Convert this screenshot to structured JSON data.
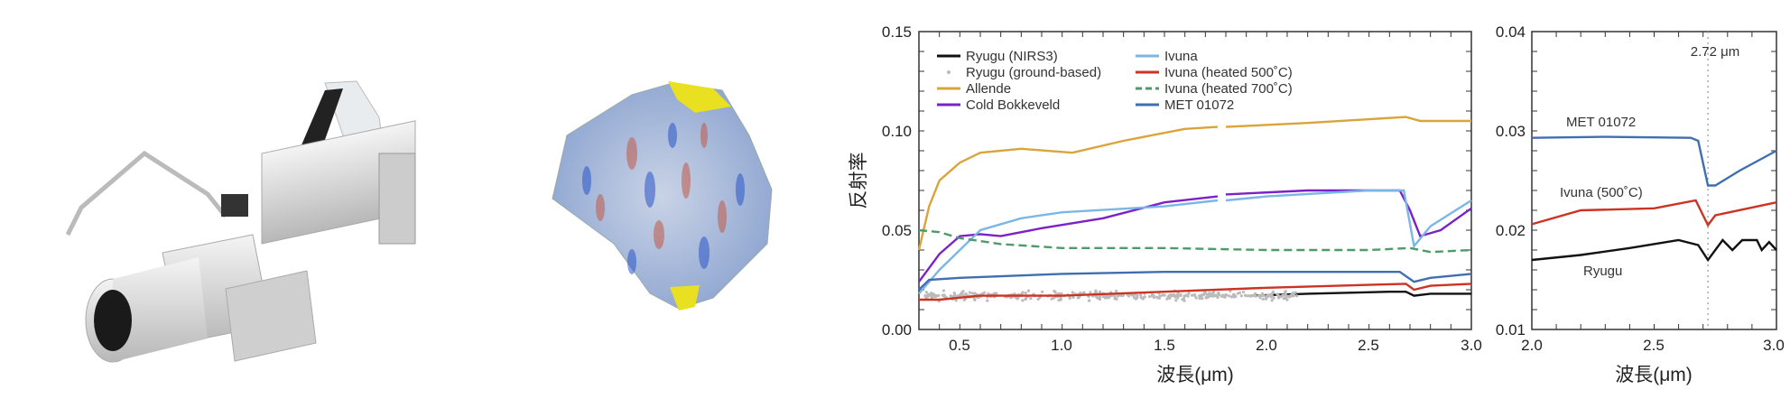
{
  "images": [
    {
      "name": "instrument-camera"
    },
    {
      "name": "asteroid-ryugu-map"
    }
  ],
  "chart_data": [
    {
      "type": "line",
      "title": "",
      "xlabel": "波長(μm)",
      "ylabel": "反射率",
      "xlim": [
        0.3,
        3.0
      ],
      "ylim": [
        0.0,
        0.15
      ],
      "xticks": [
        "0.5",
        "1.0",
        "1.5",
        "2.0",
        "2.5",
        "3.0"
      ],
      "yticks": [
        "0.00",
        "0.05",
        "0.10",
        "0.15"
      ],
      "grid": false,
      "legend": "top-left",
      "series": [
        {
          "name": "Ryugu (NIRS3)",
          "color": "#111111",
          "style": "solid",
          "x": [
            1.92,
            2.2,
            2.6,
            2.68,
            2.72,
            2.8,
            3.0
          ],
          "y": [
            0.017,
            0.018,
            0.019,
            0.019,
            0.017,
            0.018,
            0.018
          ]
        },
        {
          "name": "Ryugu (ground-based)",
          "color": "#bbbbbb",
          "style": "points",
          "x": [
            0.33,
            2.15
          ],
          "y": [
            0.017,
            0.017
          ],
          "spread": 0.003
        },
        {
          "name": "Allende",
          "color": "#d9a43a",
          "style": "solid",
          "x": [
            0.3,
            0.35,
            0.4,
            0.5,
            0.6,
            0.8,
            1.05,
            1.3,
            1.6,
            1.76,
            null,
            1.8,
            2.2,
            2.68,
            2.75,
            3.0
          ],
          "y": [
            0.04,
            0.062,
            0.075,
            0.084,
            0.089,
            0.091,
            0.089,
            0.095,
            0.101,
            0.102,
            null,
            0.102,
            0.104,
            0.107,
            0.105,
            0.105
          ]
        },
        {
          "name": "Cold Bokkeveld",
          "color": "#7a22c8",
          "style": "solid",
          "x": [
            0.3,
            0.4,
            0.5,
            0.6,
            0.7,
            0.9,
            1.2,
            1.5,
            1.76,
            null,
            1.8,
            2.2,
            2.65,
            2.7,
            2.75,
            2.85,
            3.0
          ],
          "y": [
            0.024,
            0.038,
            0.047,
            0.048,
            0.047,
            0.051,
            0.056,
            0.064,
            0.067,
            null,
            0.068,
            0.07,
            0.07,
            0.06,
            0.047,
            0.05,
            0.061
          ]
        },
        {
          "name": "Ivuna",
          "color": "#7ab6e6",
          "style": "solid",
          "x": [
            0.3,
            0.4,
            0.5,
            0.6,
            0.8,
            1.0,
            1.5,
            1.76,
            null,
            1.8,
            2.0,
            2.5,
            2.67,
            2.72,
            2.8,
            3.0
          ],
          "y": [
            0.018,
            0.03,
            0.04,
            0.05,
            0.056,
            0.059,
            0.062,
            0.065,
            null,
            0.065,
            0.067,
            0.07,
            0.07,
            0.042,
            0.052,
            0.065
          ]
        },
        {
          "name": "Ivuna (heated 500˚C)",
          "color": "#cc3322",
          "style": "solid",
          "x": [
            0.3,
            0.4,
            0.6,
            1.0,
            1.5,
            2.0,
            2.68,
            2.72,
            2.8,
            3.0
          ],
          "y": [
            0.015,
            0.015,
            0.017,
            0.017,
            0.019,
            0.021,
            0.023,
            0.02,
            0.022,
            0.023
          ]
        },
        {
          "name": "Ivuna (heated 700˚C)",
          "color": "#4f9a6a",
          "style": "dashed",
          "x": [
            0.3,
            0.4,
            0.5,
            0.7,
            1.0,
            1.5,
            2.0,
            2.5,
            2.7,
            2.8,
            3.0
          ],
          "y": [
            0.05,
            0.049,
            0.046,
            0.043,
            0.041,
            0.041,
            0.04,
            0.04,
            0.041,
            0.039,
            0.04
          ]
        },
        {
          "name": "MET 01072",
          "color": "#3f6fb0",
          "style": "solid",
          "x": [
            0.3,
            0.35,
            0.5,
            1.0,
            1.5,
            2.0,
            2.65,
            2.72,
            2.8,
            3.0
          ],
          "y": [
            0.02,
            0.025,
            0.026,
            0.028,
            0.029,
            0.029,
            0.029,
            0.024,
            0.026,
            0.028
          ]
        }
      ]
    },
    {
      "type": "line",
      "title": "",
      "xlabel": "波長(μm)",
      "xlim": [
        2.0,
        3.0
      ],
      "ylim": [
        0.01,
        0.04
      ],
      "xticks": [
        "2.0",
        "2.5",
        "3.0"
      ],
      "yticks": [
        "0.01",
        "0.02",
        "0.03",
        "0.04"
      ],
      "grid": false,
      "annotation": {
        "text": "2.72 μm",
        "x": 2.72
      },
      "series": [
        {
          "name": "MET 01072",
          "color": "#3f6fb0",
          "x": [
            2.0,
            2.3,
            2.65,
            2.68,
            2.72,
            2.75,
            2.85,
            3.0
          ],
          "y": [
            0.0293,
            0.0294,
            0.0293,
            0.029,
            0.0245,
            0.0245,
            0.026,
            0.028
          ]
        },
        {
          "name": "Ivuna (500˚C)",
          "color": "#cc3322",
          "x": [
            2.0,
            2.2,
            2.5,
            2.67,
            2.72,
            2.75,
            3.0
          ],
          "y": [
            0.0206,
            0.022,
            0.0222,
            0.023,
            0.0205,
            0.0215,
            0.0228
          ]
        },
        {
          "name": "Ryugu",
          "color": "#111111",
          "x": [
            2.0,
            2.2,
            2.4,
            2.6,
            2.68,
            2.72,
            2.78,
            2.82,
            2.86,
            2.92,
            2.94,
            2.97,
            3.0
          ],
          "y": [
            0.017,
            0.0175,
            0.0182,
            0.019,
            0.0185,
            0.017,
            0.019,
            0.018,
            0.019,
            0.019,
            0.018,
            0.0188,
            0.018
          ]
        }
      ]
    }
  ]
}
